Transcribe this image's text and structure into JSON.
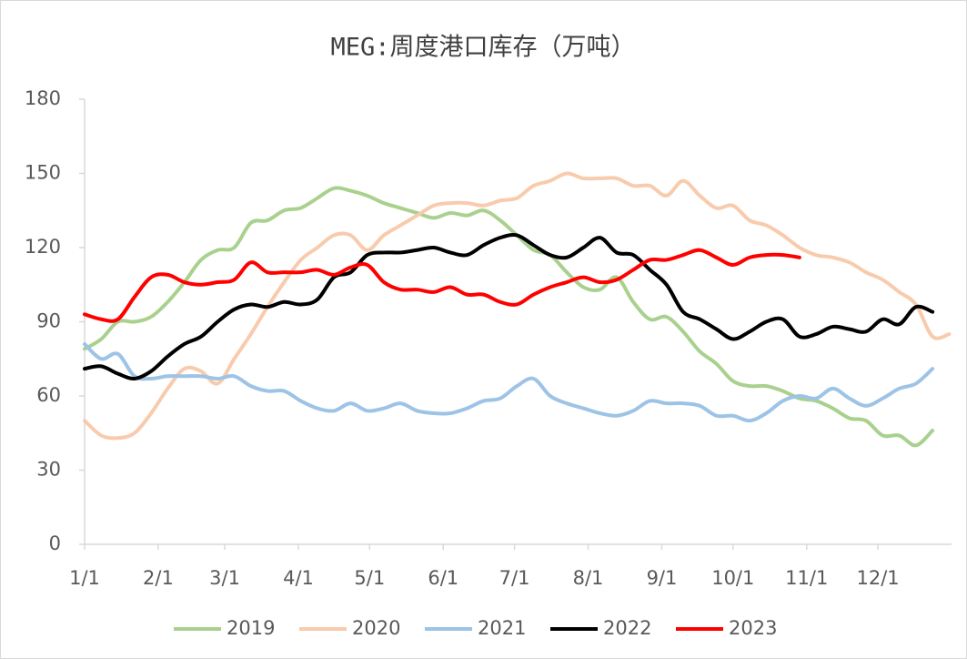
{
  "chart_data": {
    "type": "line",
    "title": "MEG:周度港口库存（万吨）",
    "x": [
      0,
      7,
      14,
      21,
      28,
      35,
      42,
      49,
      56,
      63,
      70,
      77,
      84,
      91,
      98,
      105,
      112,
      119,
      126,
      133,
      140,
      147,
      154,
      161,
      168,
      175,
      182,
      189,
      196,
      203,
      210,
      217,
      224,
      231,
      238,
      245,
      252,
      259,
      266,
      273,
      280,
      287,
      294,
      301,
      308,
      315,
      322,
      329,
      336,
      343,
      350,
      357,
      364
    ],
    "xlim": [
      0,
      365
    ],
    "xticks": [
      {
        "value": 0,
        "label": "1/1"
      },
      {
        "value": 31,
        "label": "2/1"
      },
      {
        "value": 59,
        "label": "3/1"
      },
      {
        "value": 90,
        "label": "4/1"
      },
      {
        "value": 120,
        "label": "5/1"
      },
      {
        "value": 151,
        "label": "6/1"
      },
      {
        "value": 181,
        "label": "7/1"
      },
      {
        "value": 212,
        "label": "8/1"
      },
      {
        "value": 243,
        "label": "9/1"
      },
      {
        "value": 273,
        "label": "10/1"
      },
      {
        "value": 304,
        "label": "11/1"
      },
      {
        "value": 334,
        "label": "12/1"
      }
    ],
    "ylim": [
      0,
      180
    ],
    "yticks": [
      0,
      30,
      60,
      90,
      120,
      150,
      180
    ],
    "grid": false,
    "legend": "bottom",
    "series": [
      {
        "name": "2019",
        "color": "#a9d18e",
        "values": [
          79,
          83,
          90,
          90,
          92,
          98,
          106,
          115,
          119,
          120,
          130,
          131,
          135,
          136,
          140,
          144,
          143,
          141,
          138,
          136,
          134,
          132,
          134,
          133,
          135,
          131,
          125,
          119,
          117,
          110,
          104,
          103,
          108,
          98,
          91,
          92,
          86,
          78,
          73,
          66,
          64,
          64,
          62,
          59,
          58,
          55,
          51,
          50,
          44,
          44,
          40,
          46,
          null
        ]
      },
      {
        "name": "2020",
        "color": "#f8cbad",
        "values": [
          50,
          44,
          43,
          45,
          53,
          63,
          71,
          70,
          65,
          75,
          85,
          96,
          106,
          115,
          120,
          125,
          125,
          119,
          125,
          129,
          133,
          137,
          138,
          138,
          137,
          139,
          140,
          145,
          147,
          150,
          148,
          148,
          148,
          145,
          145,
          141,
          147,
          141,
          136,
          137,
          131,
          129,
          125,
          120,
          117,
          116,
          114,
          110,
          107,
          102,
          97,
          84,
          85
        ]
      },
      {
        "name": "2021",
        "color": "#9dc3e6",
        "values": [
          81,
          75,
          77,
          68,
          67,
          68,
          68,
          68,
          67,
          68,
          64,
          62,
          62,
          58,
          55,
          54,
          57,
          54,
          55,
          57,
          54,
          53,
          53,
          55,
          58,
          59,
          64,
          67,
          60,
          57,
          55,
          53,
          52,
          54,
          58,
          57,
          57,
          56,
          52,
          52,
          50,
          53,
          58,
          60,
          59,
          63,
          59,
          56,
          59,
          63,
          65,
          71,
          null
        ]
      },
      {
        "name": "2022",
        "color": "#000000",
        "values": [
          71,
          72,
          69,
          67,
          70,
          76,
          81,
          84,
          90,
          95,
          97,
          96,
          98,
          97,
          99,
          108,
          110,
          117,
          118,
          118,
          119,
          120,
          118,
          117,
          121,
          124,
          125,
          121,
          117,
          116,
          120,
          124,
          118,
          117,
          111,
          105,
          94,
          91,
          87,
          83,
          86,
          90,
          91,
          84,
          85,
          88,
          87,
          86,
          91,
          89,
          96,
          94,
          null
        ]
      },
      {
        "name": "2023",
        "color": "#ff0000",
        "values": [
          93,
          91,
          91,
          100,
          108,
          109,
          106,
          105,
          106,
          107,
          114,
          110,
          110,
          110,
          111,
          109,
          112,
          113,
          106,
          103,
          103,
          102,
          104,
          101,
          101,
          98,
          97,
          101,
          104,
          106,
          108,
          106,
          107,
          111,
          115,
          115,
          117,
          119,
          116,
          113,
          116,
          117,
          117,
          116,
          null,
          null,
          null,
          null,
          null,
          null,
          null,
          null,
          null
        ]
      }
    ]
  }
}
